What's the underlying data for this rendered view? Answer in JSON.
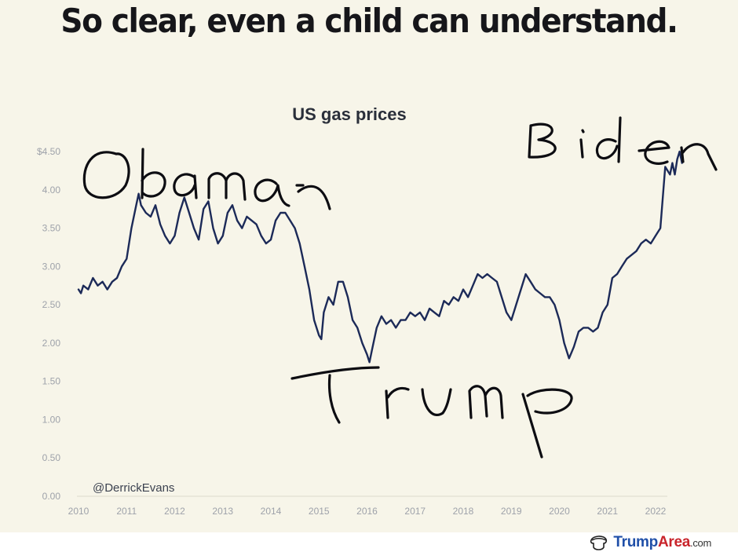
{
  "headline": "So clear, even a child can understand.",
  "annotations": {
    "left": "Obama",
    "middle": "Trump",
    "right": "Biden"
  },
  "credit": "@DerrickEvans",
  "watermark": {
    "brand_main": "Trump",
    "brand_accent": "Area",
    "brand_suffix": ".com"
  },
  "colors": {
    "background": "#f7f5e9",
    "line": "#1c2a58",
    "tick_text": "#9ea2aa",
    "brand_blue": "#1f4fa8",
    "brand_red": "#c9242b"
  },
  "chart_data": {
    "type": "line",
    "title": "US gas prices",
    "xlabel": "",
    "ylabel": "",
    "ylim": [
      0,
      4.5
    ],
    "xlim": [
      2010,
      2022.6
    ],
    "grid": false,
    "y_ticks": [
      "0.00",
      "0.50",
      "1.00",
      "1.50",
      "2.00",
      "2.50",
      "3.00",
      "3.50",
      "4.00",
      "$4.50"
    ],
    "y_tick_values": [
      0,
      0.5,
      1,
      1.5,
      2,
      2.5,
      3,
      3.5,
      4,
      4.5
    ],
    "x_ticks": [
      "2010",
      "2011",
      "2012",
      "2013",
      "2014",
      "2015",
      "2016",
      "2017",
      "2018",
      "2019",
      "2020",
      "2021",
      "2022"
    ],
    "x_tick_values": [
      2010,
      2011,
      2012,
      2013,
      2014,
      2015,
      2016,
      2017,
      2018,
      2019,
      2020,
      2021,
      2022
    ],
    "series": [
      {
        "x": [
          2010.0,
          2010.05,
          2010.1,
          2010.2,
          2010.3,
          2010.4,
          2010.5,
          2010.6,
          2010.7,
          2010.8,
          2010.9,
          2011.0,
          2011.1,
          2011.2,
          2011.25,
          2011.3,
          2011.4,
          2011.5,
          2011.6,
          2011.7,
          2011.8,
          2011.9,
          2012.0,
          2012.1,
          2012.2,
          2012.3,
          2012.4,
          2012.5,
          2012.6,
          2012.7,
          2012.8,
          2012.9,
          2013.0,
          2013.1,
          2013.2,
          2013.3,
          2013.4,
          2013.5,
          2013.6,
          2013.7,
          2013.8,
          2013.9,
          2014.0,
          2014.1,
          2014.2,
          2014.3,
          2014.4,
          2014.5,
          2014.6,
          2014.7,
          2014.8,
          2014.9,
          2015.0,
          2015.05,
          2015.1,
          2015.2,
          2015.3,
          2015.4,
          2015.5,
          2015.6,
          2015.7,
          2015.8,
          2015.9,
          2016.0,
          2016.05,
          2016.1,
          2016.2,
          2016.3,
          2016.4,
          2016.5,
          2016.6,
          2016.7,
          2016.8,
          2016.9,
          2017.0,
          2017.1,
          2017.2,
          2017.3,
          2017.4,
          2017.5,
          2017.6,
          2017.7,
          2017.8,
          2017.9,
          2018.0,
          2018.1,
          2018.2,
          2018.3,
          2018.4,
          2018.5,
          2018.6,
          2018.7,
          2018.8,
          2018.9,
          2019.0,
          2019.1,
          2019.2,
          2019.3,
          2019.4,
          2019.5,
          2019.6,
          2019.7,
          2019.8,
          2019.9,
          2020.0,
          2020.1,
          2020.2,
          2020.3,
          2020.4,
          2020.5,
          2020.6,
          2020.7,
          2020.8,
          2020.9,
          2021.0,
          2021.1,
          2021.2,
          2021.3,
          2021.4,
          2021.5,
          2021.6,
          2021.7,
          2021.8,
          2021.9,
          2022.0,
          2022.1,
          2022.2,
          2022.3,
          2022.35,
          2022.4,
          2022.45,
          2022.5,
          2022.55
        ],
        "y": [
          2.7,
          2.65,
          2.75,
          2.7,
          2.85,
          2.75,
          2.8,
          2.7,
          2.8,
          2.85,
          3.0,
          3.1,
          3.5,
          3.8,
          3.95,
          3.8,
          3.7,
          3.65,
          3.8,
          3.55,
          3.4,
          3.3,
          3.4,
          3.7,
          3.9,
          3.7,
          3.5,
          3.35,
          3.75,
          3.85,
          3.5,
          3.3,
          3.4,
          3.7,
          3.8,
          3.6,
          3.5,
          3.65,
          3.6,
          3.55,
          3.4,
          3.3,
          3.35,
          3.6,
          3.7,
          3.7,
          3.6,
          3.5,
          3.3,
          3.0,
          2.7,
          2.3,
          2.1,
          2.05,
          2.4,
          2.6,
          2.5,
          2.8,
          2.8,
          2.6,
          2.3,
          2.2,
          2.0,
          1.85,
          1.75,
          1.9,
          2.2,
          2.35,
          2.25,
          2.3,
          2.2,
          2.3,
          2.3,
          2.4,
          2.35,
          2.4,
          2.3,
          2.45,
          2.4,
          2.35,
          2.55,
          2.5,
          2.6,
          2.55,
          2.7,
          2.6,
          2.75,
          2.9,
          2.85,
          2.9,
          2.85,
          2.8,
          2.6,
          2.4,
          2.3,
          2.5,
          2.7,
          2.9,
          2.8,
          2.7,
          2.65,
          2.6,
          2.6,
          2.5,
          2.3,
          2.0,
          1.8,
          1.95,
          2.15,
          2.2,
          2.2,
          2.15,
          2.2,
          2.4,
          2.5,
          2.85,
          2.9,
          3.0,
          3.1,
          3.15,
          3.2,
          3.3,
          3.35,
          3.3,
          3.4,
          3.5,
          4.3,
          4.2,
          4.35,
          4.2,
          4.4,
          4.5,
          4.35
        ]
      }
    ]
  }
}
